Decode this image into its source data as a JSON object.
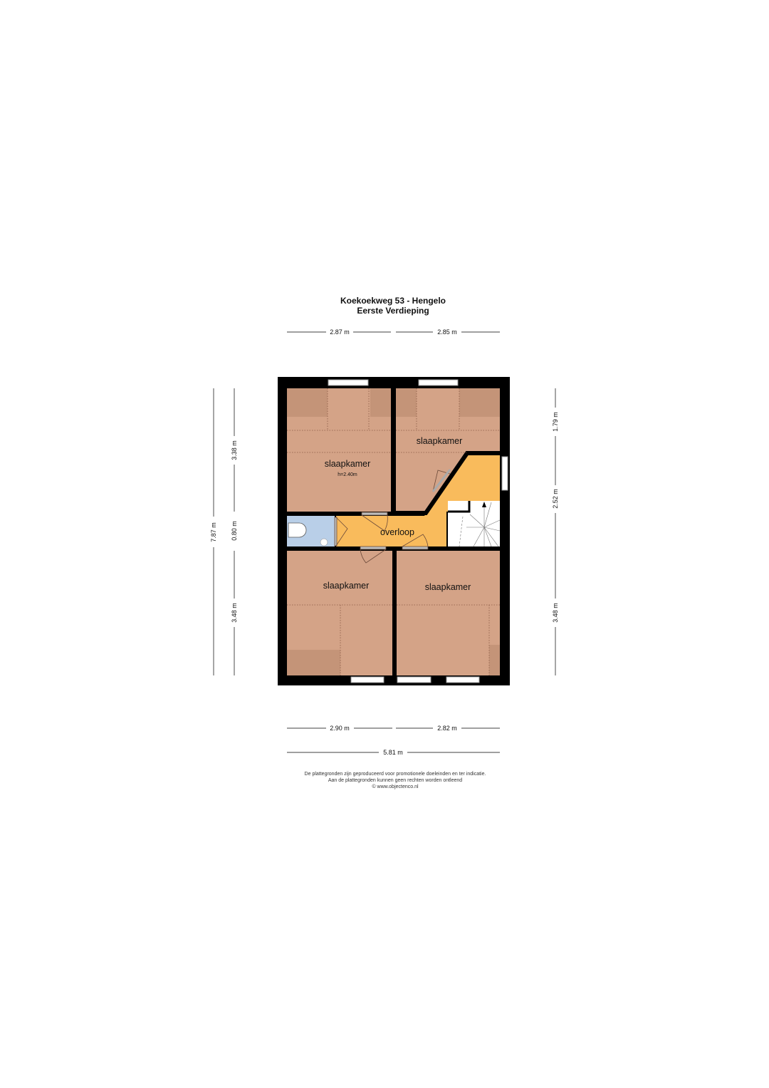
{
  "title": "Koekoekweg 53 - Hengelo",
  "subtitle": "Eerste Verdieping",
  "rooms": {
    "bedroom_top_left": "slaapkamer",
    "bedroom_top_left_height": "h=2.40m",
    "bedroom_top_right": "slaapkamer",
    "landing": "overloop",
    "bedroom_bottom_left": "slaapkamer",
    "bedroom_bottom_right": "slaapkamer"
  },
  "dimensions": {
    "top_left": "2.87 m",
    "top_right": "2.85 m",
    "left_total": "7.87 m",
    "left_top": "3.38 m",
    "left_middle": "0.80 m",
    "left_bottom": "3.48 m",
    "right_top": "1.79 m",
    "right_middle": "2.52 m",
    "right_bottom": "3.48 m",
    "bottom_left": "2.90 m",
    "bottom_right": "2.82 m",
    "bottom_total": "5.81 m"
  },
  "disclaimer": {
    "line1": "De plattegronden zijn geproduceerd voor promotionele doeleinden en ter indicatie.",
    "line2": "Aan de plattegronden kunnen geen rechten worden ontleend",
    "line3": "© www.objectenco.nl"
  },
  "colors": {
    "bedroom": "#d4a387",
    "bedroom_dark": "#c49478",
    "landing": "#f9bb5c",
    "bathroom": "#b9cfe8",
    "wall": "#000000"
  }
}
